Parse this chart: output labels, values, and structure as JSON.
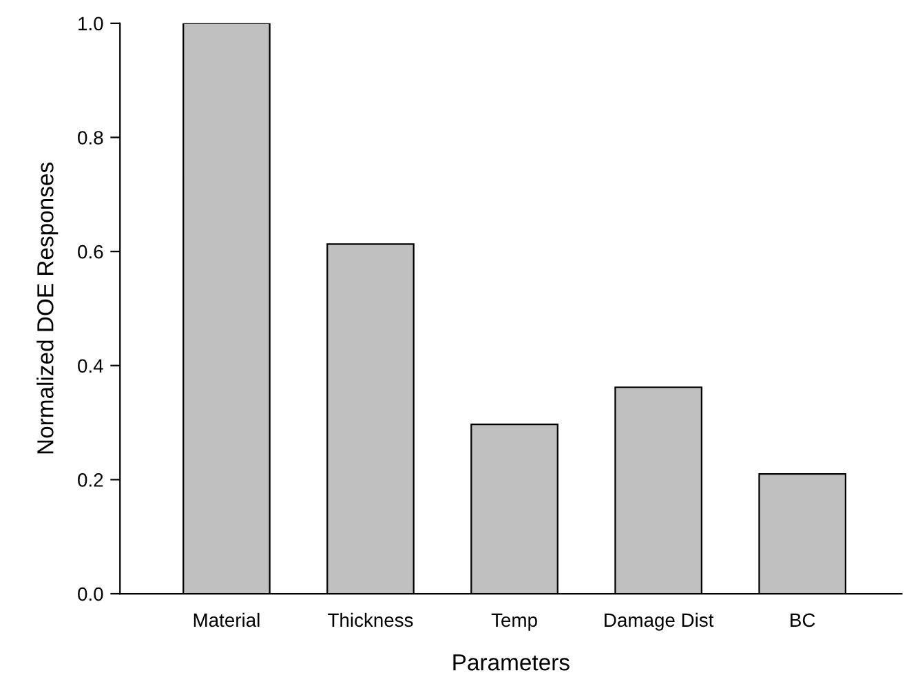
{
  "chart_data": {
    "type": "bar",
    "xlabel": "Parameters",
    "ylabel": "Normalized DOE Responses",
    "categories": [
      "Material",
      "Thickness",
      "Temp",
      "Damage Dist",
      "BC"
    ],
    "values": [
      1.0,
      0.613,
      0.297,
      0.362,
      0.21
    ],
    "color": "#c0c0c0",
    "ylim": [
      0,
      1.0
    ],
    "yticks": [
      {
        "value": 0,
        "label": "0.0"
      },
      0.2,
      0.4,
      0.6,
      0.8,
      {
        "value": 1,
        "label": "1.0"
      }
    ],
    "grid": false,
    "legend": false
  }
}
